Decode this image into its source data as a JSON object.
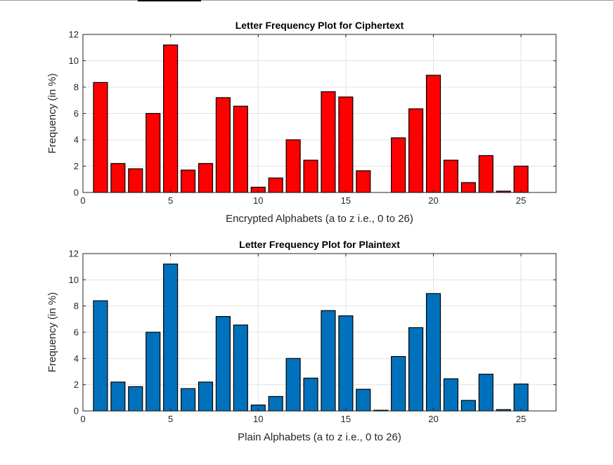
{
  "chart_data": [
    {
      "type": "bar",
      "title": "Letter Frequency Plot for Ciphertext",
      "xlabel": "Encrypted Alphabets (a to z i.e., 0 to 26)",
      "ylabel": "Frequency (in %)",
      "x": [
        1,
        2,
        3,
        4,
        5,
        6,
        7,
        8,
        9,
        10,
        11,
        12,
        13,
        14,
        15,
        16,
        17,
        18,
        19,
        20,
        21,
        22,
        23,
        24,
        25,
        26
      ],
      "values": [
        8.35,
        2.2,
        1.8,
        6.0,
        11.2,
        1.7,
        2.2,
        7.2,
        6.55,
        0.4,
        1.1,
        4.0,
        2.45,
        7.65,
        7.25,
        1.65,
        0,
        4.15,
        6.35,
        8.9,
        2.45,
        0.75,
        2.8,
        0.1,
        2.0,
        0
      ],
      "xlim": [
        0,
        27
      ],
      "ylim": [
        0,
        12
      ],
      "xticks": [
        0,
        5,
        10,
        15,
        20,
        25
      ],
      "yticks": [
        0,
        2,
        4,
        6,
        8,
        10,
        12
      ],
      "bar_color": "#ff0000",
      "grid": true
    },
    {
      "type": "bar",
      "title": "Letter Frequency Plot for Plaintext",
      "xlabel": "Plain Alphabets (a to z i.e., 0 to 26)",
      "ylabel": "Frequency (in %)",
      "x": [
        1,
        2,
        3,
        4,
        5,
        6,
        7,
        8,
        9,
        10,
        11,
        12,
        13,
        14,
        15,
        16,
        17,
        18,
        19,
        20,
        21,
        22,
        23,
        24,
        25,
        26
      ],
      "values": [
        8.4,
        2.2,
        1.85,
        6.0,
        11.2,
        1.7,
        2.2,
        7.2,
        6.55,
        0.45,
        1.1,
        4.0,
        2.5,
        7.65,
        7.25,
        1.65,
        0.05,
        4.15,
        6.35,
        8.95,
        2.45,
        0.8,
        2.8,
        0.1,
        2.05,
        0
      ],
      "xlim": [
        0,
        27
      ],
      "ylim": [
        0,
        12
      ],
      "xticks": [
        0,
        5,
        10,
        15,
        20,
        25
      ],
      "yticks": [
        0,
        2,
        4,
        6,
        8,
        10,
        12
      ],
      "bar_color": "#0072bd",
      "grid": true
    }
  ]
}
